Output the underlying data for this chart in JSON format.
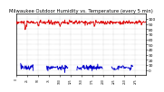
{
  "title": "Milwaukee Outdoor Humidity vs. Temperature (every 5 min)",
  "red_color": "#dd0000",
  "blue_color": "#0000cc",
  "bg_color": "#ffffff",
  "plot_bg_color": "#ffffff",
  "grid_color": "#aaaaaa",
  "text_color": "#000000",
  "border_color": "#000000",
  "ylim": [
    -10,
    110
  ],
  "y_ticks": [
    0,
    10,
    20,
    30,
    40,
    50,
    60,
    70,
    80,
    90,
    100
  ],
  "num_points": 300,
  "red_base": 93,
  "red_noise_scale": 2.0,
  "blue_base": 5,
  "blue_noise_scale": 3.0,
  "title_fontsize": 3.8,
  "tick_fontsize": 3.2,
  "line_width": 0.6,
  "grid_linewidth": 0.3,
  "grid_linestyle": ":"
}
